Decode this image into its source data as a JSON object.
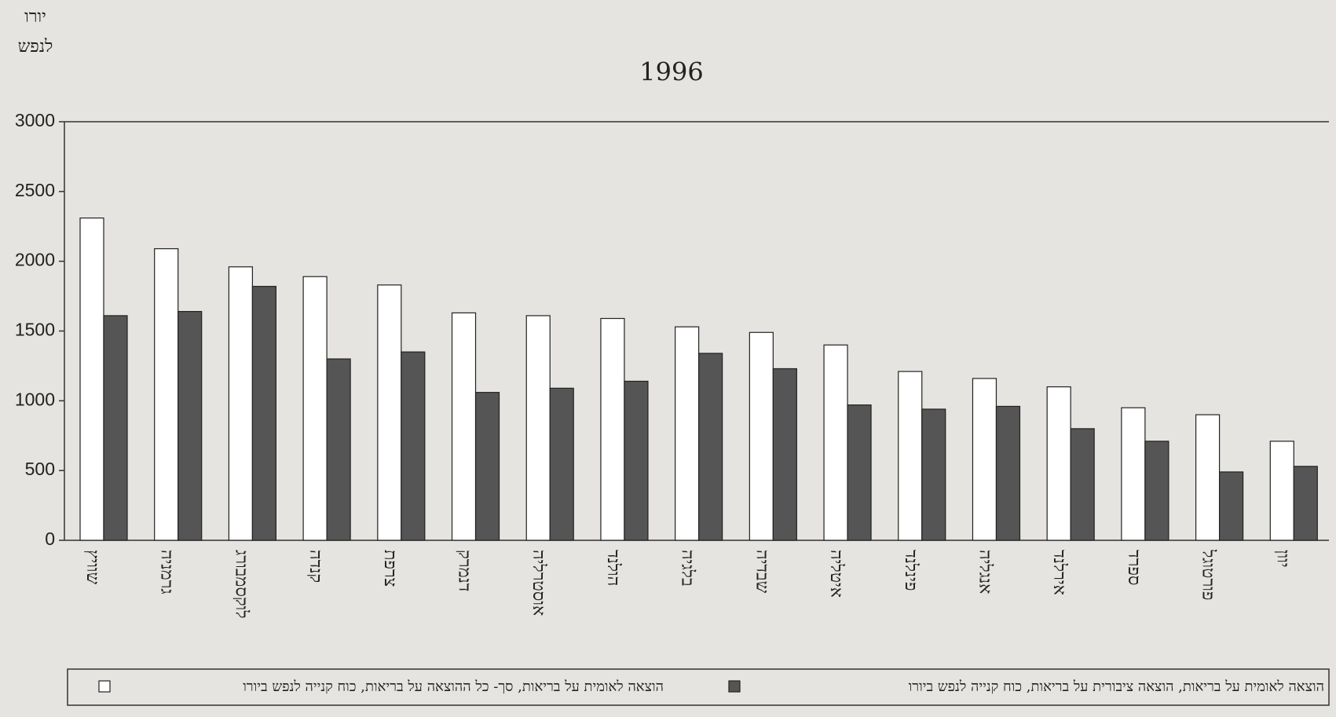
{
  "chart_data": {
    "type": "bar",
    "title": "1996",
    "y_label": [
      "יורו",
      "לנפש"
    ],
    "categories": [
      "שוויץ",
      "גרמניה",
      "לוקסמבורג",
      "קנדה",
      "צרפת",
      "דנמרק",
      "אוסטרליה",
      "הולנד",
      "בלגיה",
      "שבדיה",
      "איטליה",
      "פינלנד",
      "אנגליה",
      "אירלנד",
      "ספרד",
      "פורטוגל",
      "יוון"
    ],
    "series": [
      {
        "name": "הוצאה לאומית על בריאות, סך- כל ההוצאה על בריאות, כוח קנייה לנפש ביורו",
        "color": "#ffffff",
        "values": [
          2310,
          2090,
          1960,
          1890,
          1830,
          1630,
          1610,
          1590,
          1530,
          1490,
          1400,
          1210,
          1160,
          1100,
          950,
          900,
          710
        ]
      },
      {
        "name": "הוצאה לאומית על בריאות, הוצאה ציבורית על בריאות, כוח קנייה לנפש ביורו",
        "color": "#555555",
        "values": [
          1610,
          1640,
          1820,
          1300,
          1350,
          1060,
          1090,
          1140,
          1340,
          1230,
          970,
          940,
          960,
          800,
          710,
          490,
          530
        ]
      }
    ],
    "ylim": [
      0,
      3000
    ],
    "yticks": [
      0,
      500,
      1000,
      1500,
      2000,
      2500,
      3000
    ],
    "grid": false
  }
}
